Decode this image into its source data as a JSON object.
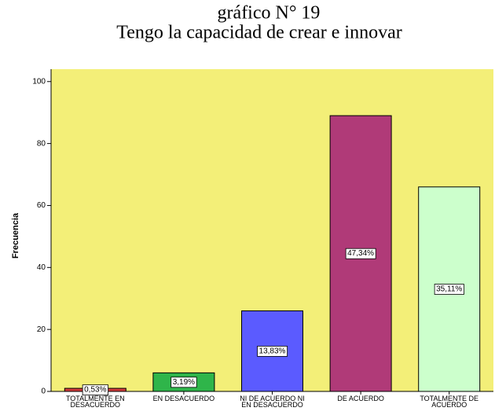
{
  "chart_data": {
    "type": "bar",
    "title": "gráfico N° 19",
    "subtitle": "Tengo la capacidad de crear e innovar",
    "y_label": "Frecuencia",
    "categories": [
      [
        "TOTALMENTE EN",
        "DESACUERDO"
      ],
      [
        "EN DESACUERDO"
      ],
      [
        "NI DE ACUERDO NI",
        "EN DESACUERDO"
      ],
      [
        "DE ACUERDO"
      ],
      [
        "TOTALMENTE DE",
        "ACUERDO"
      ]
    ],
    "values": [
      1,
      6,
      26,
      89,
      66
    ],
    "percent_labels": [
      "0,53%",
      "3,19%",
      "13,83%",
      "47,34%",
      "35,11%"
    ],
    "colors": [
      "#d23a3a",
      "#2fb54a",
      "#5b5bff",
      "#b03a78",
      "#ccffcc"
    ],
    "background": "#f3ef78",
    "ylim": [
      0,
      104
    ],
    "yticks": [
      0,
      20,
      40,
      60,
      80,
      100
    ],
    "grid": false
  }
}
